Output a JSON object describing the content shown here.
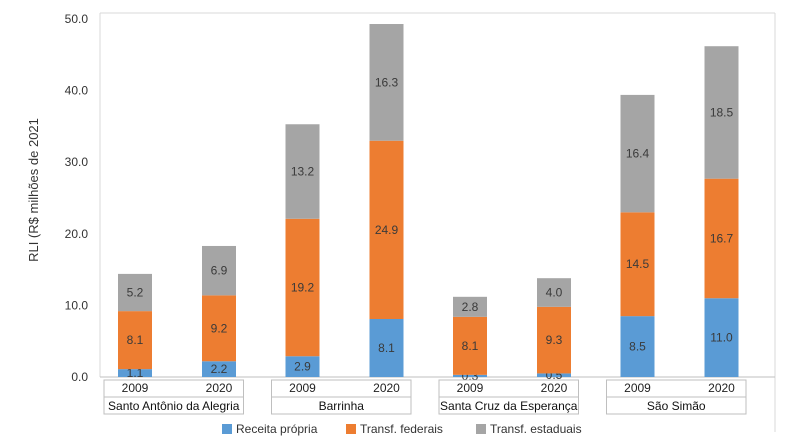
{
  "chart_data": {
    "type": "bar",
    "stacked": true,
    "title": "",
    "ylabel": "RLI (R$ milhões de 2021",
    "xlabel": "",
    "ylim": [
      0,
      50
    ],
    "yticks": [
      "0.0",
      "10.0",
      "20.0",
      "30.0",
      "40.0",
      "50.0"
    ],
    "groups": [
      {
        "name": "Santo Antônio da Alegria",
        "years": [
          "2009",
          "2020"
        ]
      },
      {
        "name": "Barrinha",
        "years": [
          "2009",
          "2020"
        ]
      },
      {
        "name": "Santa Cruz da Esperança",
        "years": [
          "2009",
          "2020"
        ]
      },
      {
        "name": "São Simão",
        "years": [
          "2009",
          "2020"
        ]
      }
    ],
    "categories": [
      "Santo Antônio da Alegria 2009",
      "Santo Antônio da Alegria 2020",
      "Barrinha 2009",
      "Barrinha 2020",
      "Santa Cruz da Esperança 2009",
      "Santa Cruz da Esperança 2020",
      "São Simão 2009",
      "São Simão 2020"
    ],
    "series": [
      {
        "name": "Receita própria",
        "color": "#5a9bd5",
        "values": [
          1.1,
          2.2,
          2.9,
          8.1,
          0.3,
          0.5,
          8.5,
          11.0
        ],
        "labels": [
          "1.1",
          "2.2",
          "2.9",
          "8.1",
          "0.3",
          "0.5",
          "8.5",
          "11.0"
        ]
      },
      {
        "name": "Transf. federais",
        "color": "#ed7d31",
        "values": [
          8.1,
          9.2,
          19.2,
          24.9,
          8.1,
          9.3,
          14.5,
          16.7
        ],
        "labels": [
          "8.1",
          "9.2",
          "19.2",
          "24.9",
          "8.1",
          "9.3",
          "14.5",
          "16.7"
        ]
      },
      {
        "name": "Transf. estaduais",
        "color": "#a5a5a5",
        "values": [
          5.2,
          6.9,
          13.2,
          16.3,
          2.8,
          4.0,
          16.4,
          18.5
        ],
        "labels": [
          "5.2",
          "6.9",
          "13.2",
          "16.3",
          "2.8",
          "4.0",
          "16.4",
          "18.5"
        ]
      }
    ],
    "legend_position": "bottom"
  }
}
